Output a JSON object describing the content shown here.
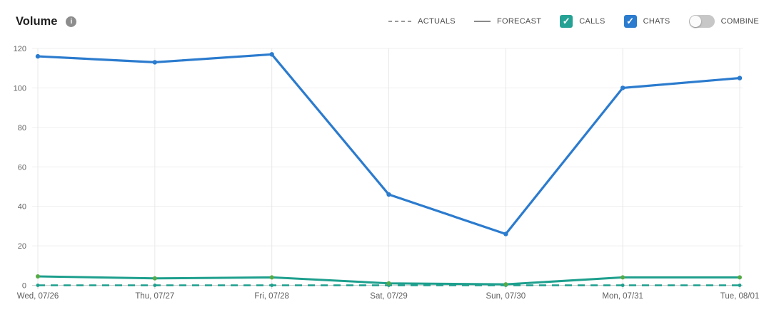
{
  "header": {
    "title": "Volume",
    "info_icon_glyph": "i"
  },
  "legend": {
    "actuals_label": "ACTUALS",
    "forecast_label": "FORECAST",
    "calls_label": "CALLS",
    "chats_label": "CHATS",
    "combine_label": "COMBINE",
    "calls_checked": true,
    "chats_checked": true,
    "combine_on": false,
    "check_glyph": "✓",
    "calls_color": "#26a294",
    "chats_color": "#2b7bce"
  },
  "chart_data": {
    "type": "line",
    "title": "Volume",
    "categories": [
      "Wed, 07/26",
      "Thu, 07/27",
      "Fri, 07/28",
      "Sat, 07/29",
      "Sun, 07/30",
      "Mon, 07/31",
      "Tue, 08/01"
    ],
    "y_ticks": [
      0,
      20,
      40,
      60,
      80,
      100,
      120
    ],
    "ylim": [
      0,
      120
    ],
    "grid": true,
    "legend_position": "top-right",
    "series": [
      {
        "name": "CALLS ACTUALS",
        "style": "dashed",
        "color": "#1d9f8d",
        "marker_color": "#1d9f8d",
        "line_width": 2.4,
        "marker_radius": 2.4,
        "values": [
          0,
          0,
          0,
          0,
          0,
          0,
          0
        ]
      },
      {
        "name": "CALLS FORECAST",
        "style": "solid",
        "color": "#1d9f8d",
        "marker_color": "#56ab47",
        "line_width": 3,
        "marker_radius": 3,
        "values": [
          4.5,
          3.5,
          4,
          1,
          0.5,
          4,
          4
        ]
      },
      {
        "name": "CHATS FORECAST",
        "style": "solid",
        "color": "#2b7bce",
        "marker_color": "#2b7bce",
        "line_width": 3.2,
        "marker_radius": 3.2,
        "values": [
          116,
          113,
          117,
          46,
          26,
          100,
          105
        ]
      }
    ]
  }
}
